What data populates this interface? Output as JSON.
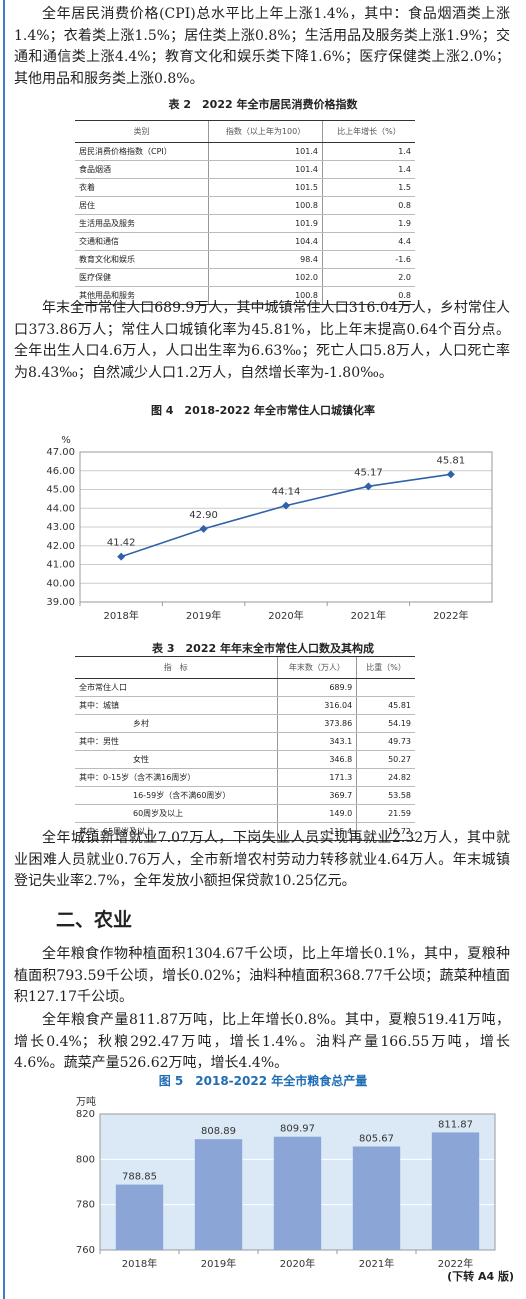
{
  "paragraphs": [
    "全年居民消费价格(CPI)总水平比上年上涨1.4%，其中：食品烟酒类上涨1.4%；衣着类上涨1.5%；居住类上涨0.8%；生活用品及服务类上涨1.9%；交通和通信类上涨4.4%；教育文化和娱乐类下降1.6%；医疗保健类上涨2.0%；其他用品和服务类上涨0.8%。",
    "年末全市常住人口689.9万人，其中城镇常住人口316.04万人，乡村常住人口373.86万人；常住人口城镇化率为45.81%，比上年末提高0.64个百分点。全年出生人口4.6万人，人口出生率为6.63‰；死亡人口5.8万人，人口死亡率为8.43‰；自然减少人口1.2万人，自然增长率为-1.80‰。",
    "全年城镇新增就业7.07万人，下岗失业人员实现再就业2.32万人，其中就业困难人员就业0.76万人，全市新增农村劳动力转移就业4.64万人。年末城镇登记失业率2.7%，全年发放小额担保贷款10.25亿元。",
    "全年粮食作物种植面积1304.67千公顷，比上年增长0.1%，其中，夏粮种植面积793.59千公顷，增长0.02%；油料种植面积368.77千公顷；蔬菜种植面积127.17千公顷。",
    "全年粮食产量811.87万吨，比上年增长0.8%。其中，夏粮519.41万吨，增长0.4%；秋粮292.47万吨，增长1.4%。油料产量166.55万吨，增长4.6%。蔬菜产量526.62万吨，增长4.4%。"
  ],
  "section_heading": "二、农业",
  "table2": {
    "title": "表 2　2022 年全市居民消费价格指数",
    "headers": [
      "类别",
      "指数（以上年为100）",
      "比上年增长（%）"
    ],
    "rows": [
      [
        "居民消费价格指数（CPI）",
        "101.4",
        "1.4"
      ],
      [
        "食品烟酒",
        "101.4",
        "1.4"
      ],
      [
        "衣着",
        "101.5",
        "1.5"
      ],
      [
        "居住",
        "100.8",
        "0.8"
      ],
      [
        "生活用品及服务",
        "101.9",
        "1.9"
      ],
      [
        "交通和通信",
        "104.4",
        "4.4"
      ],
      [
        "教育文化和娱乐",
        "98.4",
        "-1.6"
      ],
      [
        "医疗保健",
        "102.0",
        "2.0"
      ],
      [
        "其他用品和服务",
        "100.8",
        "0.8"
      ]
    ]
  },
  "table3": {
    "title": "表 3　2022 年年末全市常住人口数及其构成",
    "headers": [
      "指　标",
      "年末数（万人）",
      "比重（%）"
    ],
    "rows": [
      [
        "全市常住人口",
        "689.9"
      ],
      [
        "其中：城镇",
        "316.04",
        "45.81"
      ],
      [
        "乡村",
        "373.86",
        "54.19"
      ],
      [
        "其中：男性",
        "343.1",
        "49.73"
      ],
      [
        "女性",
        "346.8",
        "50.27"
      ],
      [
        "其中：0-15岁（含不满16周岁）",
        "171.3",
        "24.82"
      ],
      [
        "16-59岁（含不满60周岁）",
        "369.7",
        "53.58"
      ],
      [
        "60周岁及以上",
        "149.0",
        "21.59"
      ],
      [
        "其中：65周岁及以上",
        "115.4",
        "16.72"
      ]
    ]
  },
  "footer": "(下转 A4 版)",
  "chart_data": [
    {
      "type": "line",
      "title": "图 4　2018-2022 年全市常住人口城镇化率",
      "y_label": "%",
      "categories": [
        "2018年",
        "2019年",
        "2020年",
        "2021年",
        "2022年"
      ],
      "values": [
        41.42,
        42.9,
        44.14,
        45.17,
        45.81
      ],
      "value_labels": [
        "41.42",
        "42.90",
        "44.14",
        "45.17",
        "45.81"
      ],
      "color": "#2f62a8",
      "ylim": [
        39,
        47
      ],
      "yticks": [
        {
          "value": 39,
          "label": "39.00"
        },
        {
          "value": 40,
          "label": "40.00"
        },
        {
          "value": 41,
          "label": "41.00"
        },
        {
          "value": 42,
          "label": "42.00"
        },
        {
          "value": 43,
          "label": "43.00"
        },
        {
          "value": 44,
          "label": "44.00"
        },
        {
          "value": 45,
          "label": "45.00"
        },
        {
          "value": 46,
          "label": "46.00"
        },
        {
          "value": 47,
          "label": "47.00"
        }
      ],
      "grid": true
    },
    {
      "type": "bar",
      "title": "图 5　2018-2022 年全市粮食总产量",
      "y_label": "万吨",
      "categories": [
        "2018年",
        "2019年",
        "2020年",
        "2021年",
        "2022年"
      ],
      "values": [
        788.85,
        808.89,
        809.97,
        805.67,
        811.87
      ],
      "color": "#8aa5d6",
      "ylim": [
        760,
        820
      ],
      "yticks": [
        760,
        780,
        800,
        820
      ],
      "grid": true
    }
  ]
}
